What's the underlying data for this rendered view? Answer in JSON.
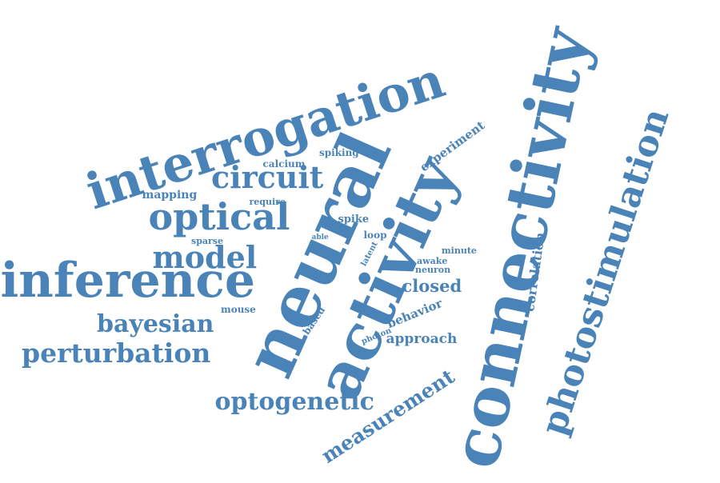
{
  "cloud": {
    "color": "#4a83b8",
    "words": [
      {
        "key": "connectivity",
        "text": "connectivity"
      },
      {
        "key": "neural",
        "text": "neural"
      },
      {
        "key": "activity",
        "text": "activity"
      },
      {
        "key": "interrogation",
        "text": "interrogation"
      },
      {
        "key": "photostimulation",
        "text": "photostimulation"
      },
      {
        "key": "inference",
        "text": "inference"
      },
      {
        "key": "optical",
        "text": "optical"
      },
      {
        "key": "model",
        "text": "model"
      },
      {
        "key": "circuit",
        "text": "circuit"
      },
      {
        "key": "perturbation",
        "text": "perturbation"
      },
      {
        "key": "bayesian",
        "text": "bayesian"
      },
      {
        "key": "optogenetic",
        "text": "optogenetic"
      },
      {
        "key": "measurement",
        "text": "measurement"
      },
      {
        "key": "closed",
        "text": "closed"
      },
      {
        "key": "approach",
        "text": "approach"
      },
      {
        "key": "experiment",
        "text": "experiment"
      },
      {
        "key": "correlation",
        "text": "correlation"
      },
      {
        "key": "behavior",
        "text": "behavior"
      },
      {
        "key": "mapping",
        "text": "mapping"
      },
      {
        "key": "spiking",
        "text": "spiking"
      },
      {
        "key": "calcium",
        "text": "calcium"
      },
      {
        "key": "require",
        "text": "require"
      },
      {
        "key": "spike",
        "text": "spike"
      },
      {
        "key": "loop",
        "text": "loop"
      },
      {
        "key": "sparse",
        "text": "sparse"
      },
      {
        "key": "able",
        "text": "able"
      },
      {
        "key": "latent",
        "text": "latent"
      },
      {
        "key": "minute",
        "text": "minute"
      },
      {
        "key": "awake",
        "text": "awake"
      },
      {
        "key": "neuron",
        "text": "neuron"
      },
      {
        "key": "mouse",
        "text": "mouse"
      },
      {
        "key": "based",
        "text": "based"
      },
      {
        "key": "photon",
        "text": "photon"
      }
    ]
  }
}
